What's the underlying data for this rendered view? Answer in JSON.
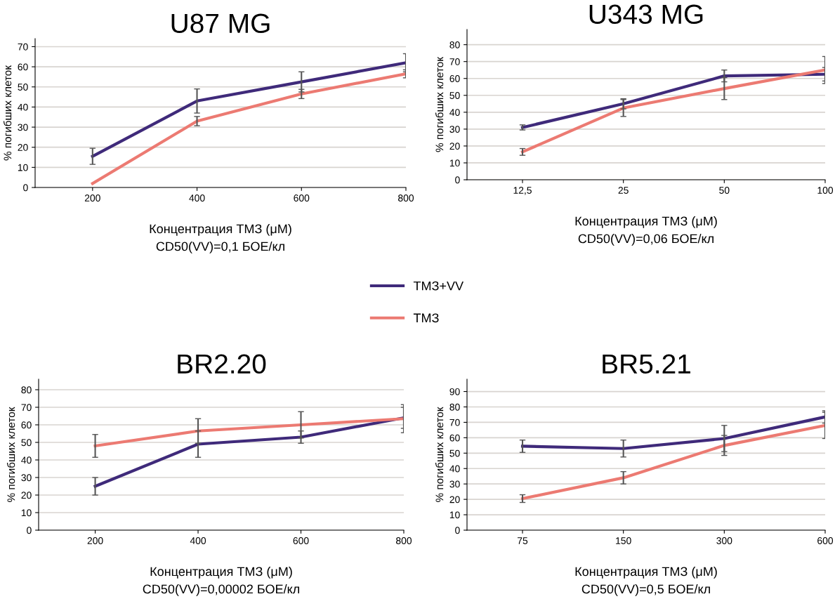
{
  "chart_data": [
    {
      "type": "line",
      "title": "U87 MG",
      "xlabel": "Концентрация ТМЗ (μM)",
      "ylabel": "% погибших клеток",
      "categories": [
        "200",
        "400",
        "600",
        "800"
      ],
      "ylim": [
        0,
        74
      ],
      "yticks": [
        0,
        10,
        20,
        30,
        40,
        50,
        60,
        70
      ],
      "grid": "y",
      "legend": "bottom",
      "marker": "none",
      "line_style": "solid",
      "annotations": [
        "CD50(VV)=0,1 БОЕ/кл"
      ],
      "series": [
        {
          "name": "ТМЗ+VV",
          "color": "#3f2a7a",
          "values": [
            15.5,
            43,
            52.5,
            62
          ],
          "errors": [
            4,
            6,
            5,
            4.5
          ]
        },
        {
          "name": "ТМЗ",
          "color": "#ec7a72",
          "values": [
            2,
            33,
            46.5,
            56.5
          ],
          "errors": [
            null,
            2.3,
            2.3,
            2
          ]
        }
      ]
    },
    {
      "type": "line",
      "title": "U343 MG",
      "xlabel": "Концентрация ТМЗ (μM)",
      "ylabel": "% погибших клеток",
      "categories": [
        "12,5",
        "25",
        "50",
        "100"
      ],
      "ylim": [
        0,
        89
      ],
      "yticks": [
        0,
        10,
        20,
        30,
        40,
        50,
        60,
        70,
        80
      ],
      "grid": "y",
      "marker": "none",
      "line_style": "solid",
      "annotations": [
        "CD50(VV)=0,06 БОЕ/кл"
      ],
      "series": [
        {
          "color": "#3f2a7a",
          "values": [
            31,
            45,
            61.5,
            62.5
          ],
          "errors": [
            1.5,
            3,
            3.5,
            4
          ]
        },
        {
          "color": "#ec7a72",
          "values": [
            16.5,
            42.5,
            54,
            65
          ],
          "errors": [
            2,
            5,
            6.5,
            8
          ]
        }
      ]
    },
    {
      "type": "line",
      "title": "BR2.20",
      "xlabel": "Концентрация ТМЗ (μM)",
      "ylabel": "% погибших клеток",
      "categories": [
        "200",
        "400",
        "600",
        "800"
      ],
      "ylim": [
        0,
        86
      ],
      "yticks": [
        0,
        10,
        20,
        30,
        40,
        50,
        60,
        70,
        80
      ],
      "grid": "y",
      "marker": "none",
      "line_style": "solid",
      "annotations": [
        "CD50(VV)=0,00002 БОЕ/кл"
      ],
      "series": [
        {
          "color": "#3f2a7a",
          "values": [
            25,
            49,
            53,
            64
          ],
          "errors": [
            5,
            7.5,
            3.5,
            6
          ]
        },
        {
          "color": "#ec7a72",
          "values": [
            48,
            56.5,
            60,
            63.5
          ],
          "errors": [
            6.5,
            7,
            7.5,
            8
          ]
        }
      ]
    },
    {
      "type": "line",
      "title": "BR5.21",
      "xlabel": "Концентрация ТМЗ (μM)",
      "ylabel": "% погибших клеток",
      "categories": [
        "75",
        "150",
        "300",
        "600"
      ],
      "ylim": [
        0,
        98
      ],
      "yticks": [
        0,
        10,
        20,
        30,
        40,
        50,
        60,
        70,
        80,
        90
      ],
      "grid": "y",
      "marker": "none",
      "line_style": "solid",
      "annotations": [
        "CD50(VV)=0,5 БОЕ/кл"
      ],
      "series": [
        {
          "color": "#3f2a7a",
          "values": [
            54.5,
            53,
            59.5,
            73.5
          ],
          "errors": [
            4,
            5.5,
            8.5,
            4
          ]
        },
        {
          "color": "#ec7a72",
          "values": [
            20.5,
            34,
            55,
            68
          ],
          "errors": [
            2.5,
            4,
            6.5,
            8.5
          ]
        }
      ]
    }
  ]
}
